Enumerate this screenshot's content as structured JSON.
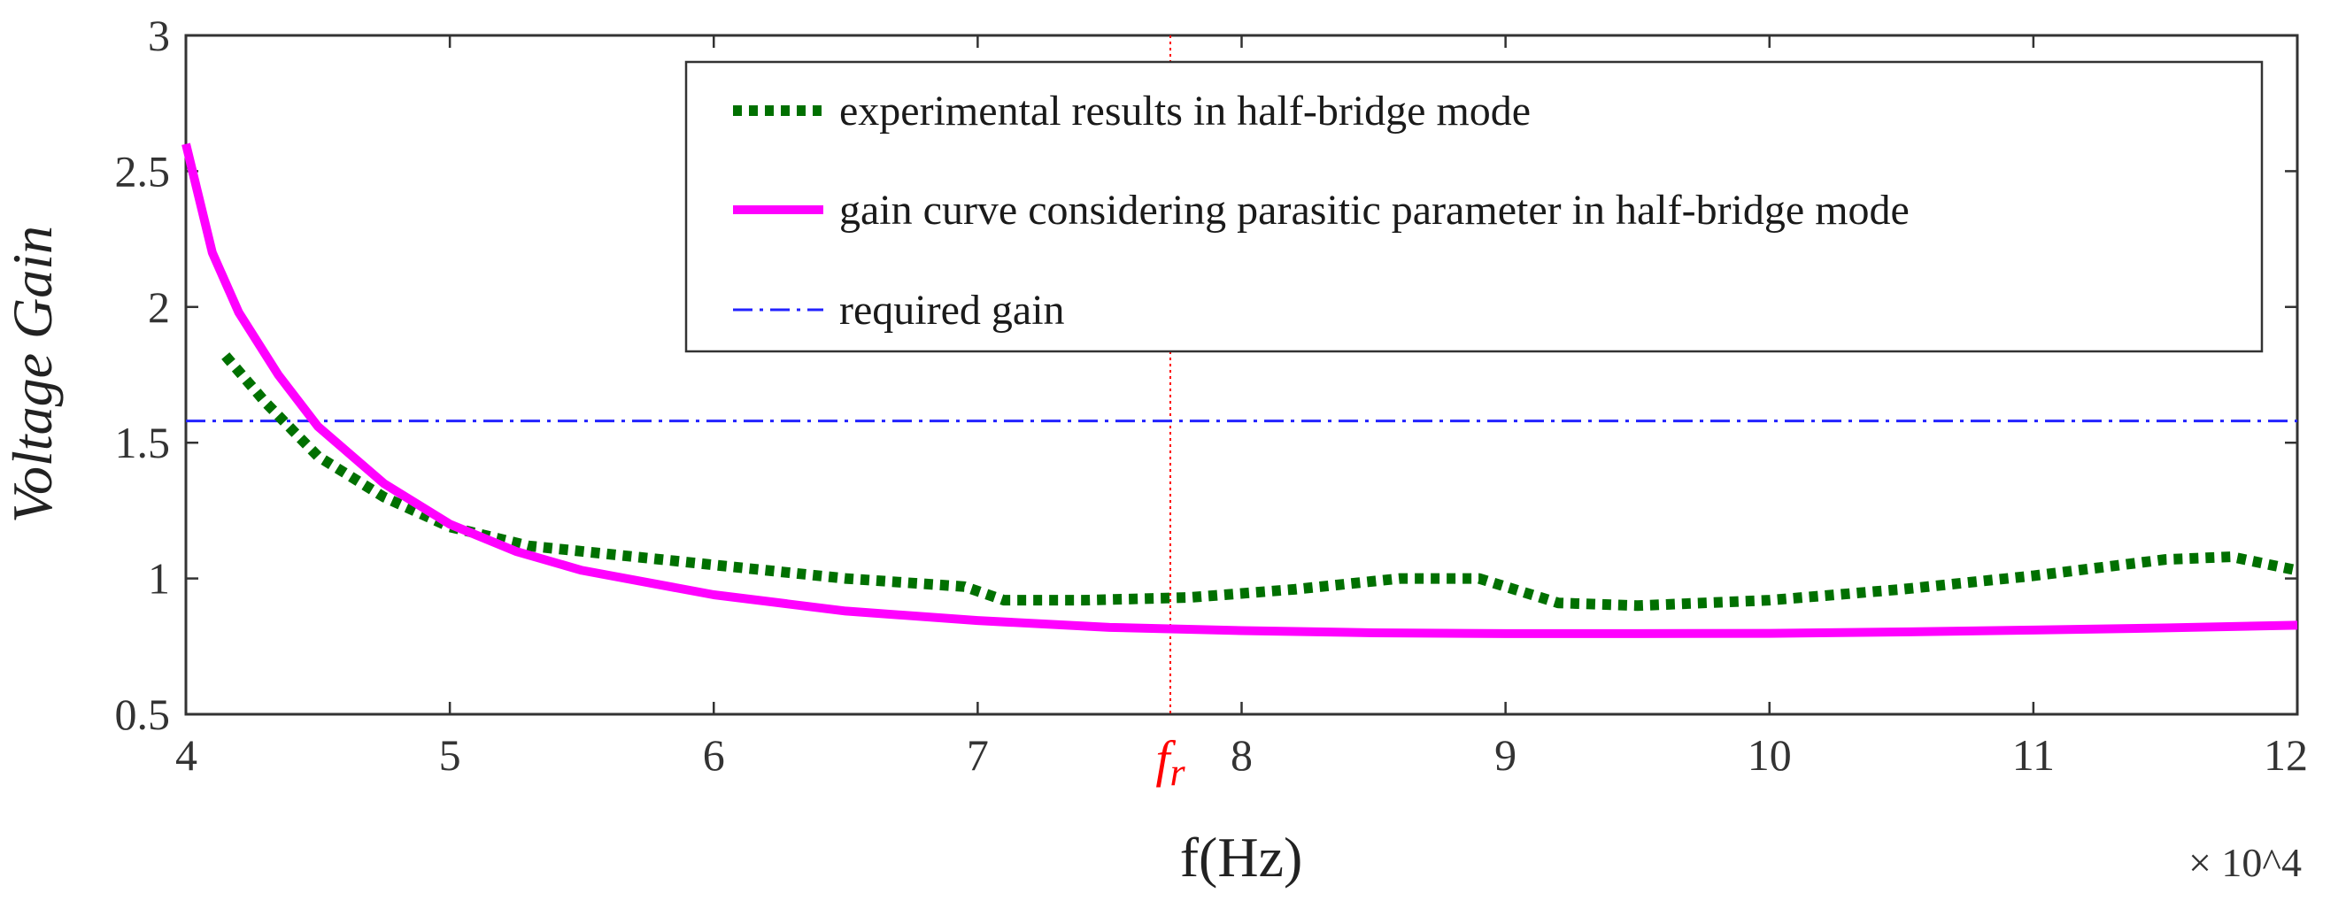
{
  "chart_data": {
    "type": "line",
    "title": "",
    "xlabel": "f(Hz)",
    "ylabel": "Voltage Gain",
    "x_multiplier_label": "× 10^4",
    "xlim": [
      4,
      12
    ],
    "ylim": [
      0.5,
      3
    ],
    "x_ticks": [
      "4",
      "5",
      "6",
      "7",
      "8",
      "9",
      "10",
      "11",
      "12"
    ],
    "x_tick_values": [
      4,
      5,
      6,
      7,
      8,
      9,
      10,
      11,
      12
    ],
    "y_ticks": [
      "0.5",
      "1",
      "1.5",
      "2",
      "2.5",
      "3"
    ],
    "y_tick_values": [
      0.5,
      1,
      1.5,
      2,
      2.5,
      3
    ],
    "grid": false,
    "legend_position": "top-right",
    "resonant_marker": {
      "label_main": "f",
      "label_sub": "r",
      "x": 7.73,
      "color": "#ff0000"
    },
    "series": [
      {
        "name": "experimental results in half-bridge mode",
        "style": "dotted",
        "color": "#007000",
        "x": [
          4.15,
          4.3,
          4.5,
          4.75,
          5.0,
          5.3,
          5.6,
          6.0,
          6.5,
          6.95,
          7.1,
          7.4,
          7.8,
          8.2,
          8.6,
          8.9,
          9.2,
          9.5,
          10.0,
          10.5,
          11.0,
          11.5,
          11.75,
          12.0
        ],
        "values": [
          1.82,
          1.65,
          1.45,
          1.3,
          1.19,
          1.12,
          1.09,
          1.05,
          1.0,
          0.97,
          0.92,
          0.92,
          0.93,
          0.96,
          1.0,
          1.0,
          0.91,
          0.9,
          0.92,
          0.96,
          1.01,
          1.07,
          1.08,
          1.03
        ]
      },
      {
        "name": "gain curve considering parasitic parameter in half-bridge mode",
        "style": "solid",
        "color": "#ff00ff",
        "x": [
          4.0,
          4.1,
          4.2,
          4.35,
          4.5,
          4.75,
          5.0,
          5.25,
          5.5,
          6.0,
          6.5,
          7.0,
          7.5,
          8.0,
          8.5,
          9.0,
          9.5,
          10.0,
          10.5,
          11.0,
          11.5,
          12.0
        ],
        "values": [
          2.6,
          2.2,
          1.98,
          1.75,
          1.56,
          1.35,
          1.2,
          1.1,
          1.03,
          0.94,
          0.88,
          0.845,
          0.82,
          0.808,
          0.8,
          0.797,
          0.797,
          0.798,
          0.803,
          0.81,
          0.818,
          0.828
        ]
      },
      {
        "name": "required gain",
        "style": "dashdot",
        "color": "#2222ff",
        "x": [
          4,
          12
        ],
        "values": [
          1.58,
          1.58
        ]
      }
    ]
  }
}
